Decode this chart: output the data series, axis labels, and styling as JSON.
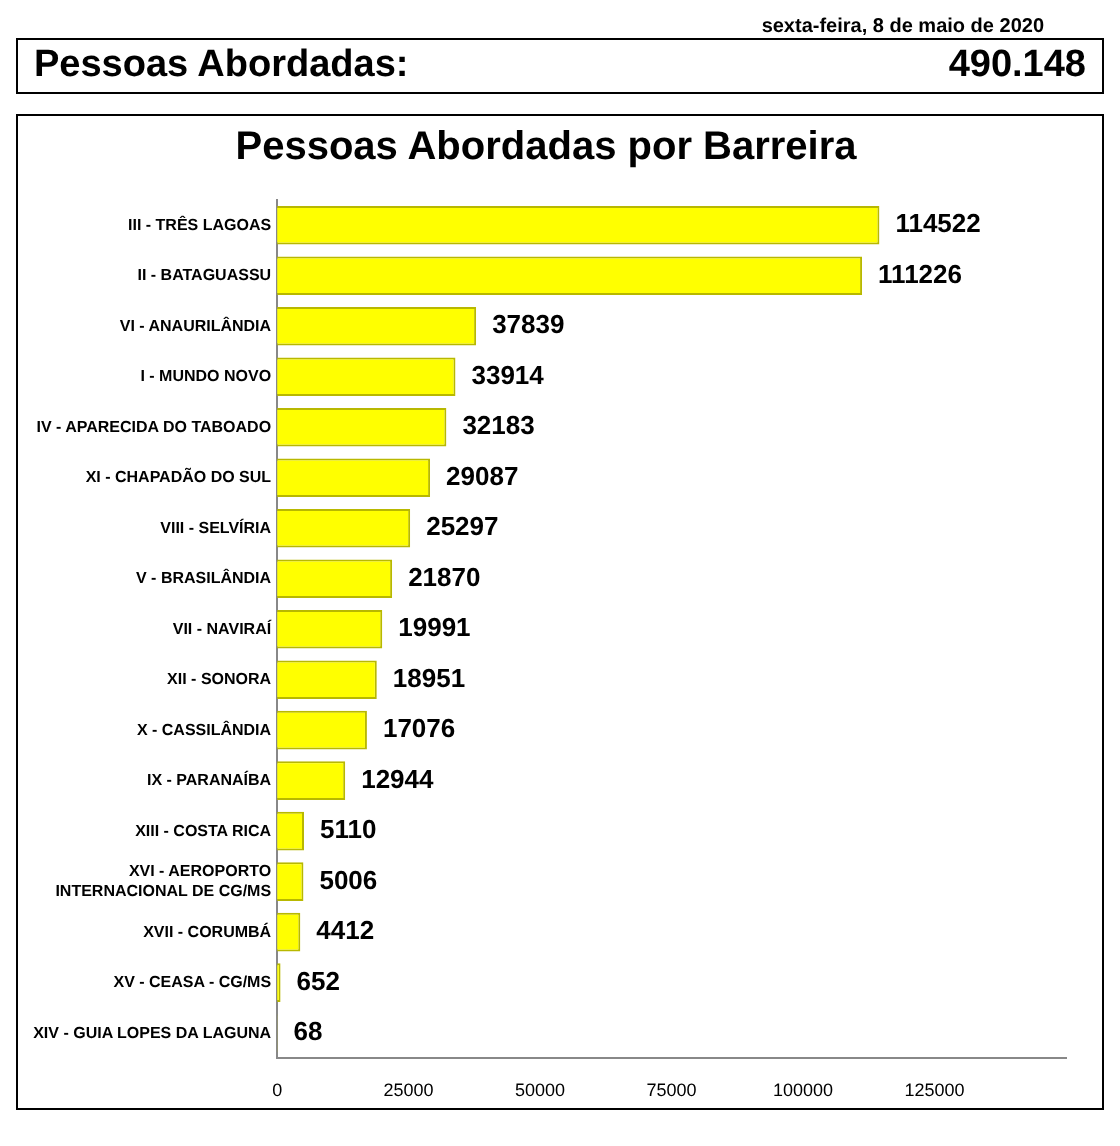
{
  "chart_data": {
    "type": "bar",
    "orientation": "horizontal",
    "title": "Pessoas Abordadas por Barreira",
    "annotations": [
      "sexta-feira, 8 de maio de 2020",
      "Pessoas Abordadas:",
      "490.148"
    ],
    "categories": [
      "III - TRÊS LAGOAS",
      "II - BATAGUASSU",
      "VI - ANAURILÂNDIA",
      "I - MUNDO NOVO",
      "IV - APARECIDA DO TABOADO",
      "XI - CHAPADÃO DO SUL",
      "VIII - SELVÍRIA",
      "V - BRASILÂNDIA",
      "VII - NAVIRAÍ",
      "XII - SONORA",
      "X - CASSILÂNDIA",
      "IX - PARANAÍBA",
      "XIII - COSTA RICA",
      "XVI - AEROPORTO INTERNACIONAL DE CG/MS",
      "XVII - CORUMBÁ",
      "XV - CEASA - CG/MS",
      "XIV - GUIA LOPES DA LAGUNA"
    ],
    "values": [
      114522,
      111226,
      37839,
      33914,
      32183,
      29087,
      25297,
      21870,
      19991,
      18951,
      17076,
      12944,
      5110,
      5006,
      4412,
      652,
      68
    ],
    "color": "#ffff00",
    "xlim": [
      0,
      150000
    ],
    "xticks": [
      0,
      25000,
      50000,
      75000,
      100000,
      125000
    ],
    "grid": false,
    "legend": false,
    "data_labels": true
  }
}
